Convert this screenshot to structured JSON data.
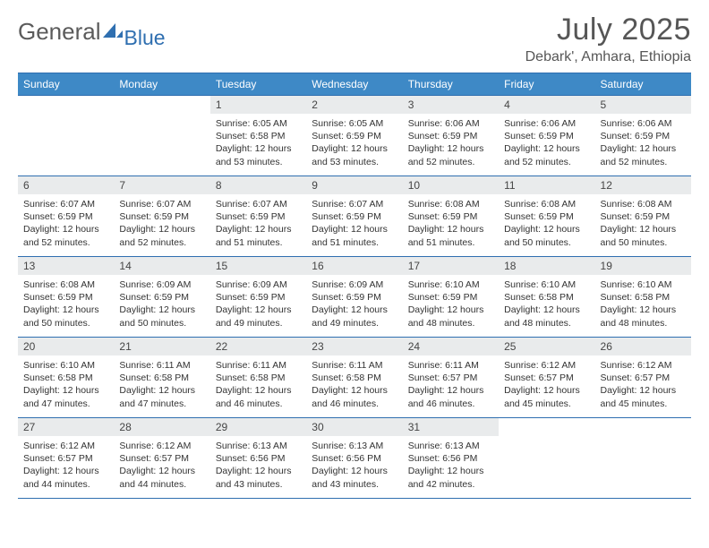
{
  "logo": {
    "text1": "General",
    "text2": "Blue"
  },
  "title": "July 2025",
  "location": "Debark', Amhara, Ethiopia",
  "theme": {
    "header_bg": "#3e89c6",
    "header_border": "#2f6fb0",
    "daynum_bg": "#e9ebec",
    "text_color": "#333333",
    "title_color": "#565656"
  },
  "weekday_labels": [
    "Sunday",
    "Monday",
    "Tuesday",
    "Wednesday",
    "Thursday",
    "Friday",
    "Saturday"
  ],
  "weeks": [
    [
      {
        "n": "",
        "sr": "",
        "ss": "",
        "dl": ""
      },
      {
        "n": "",
        "sr": "",
        "ss": "",
        "dl": ""
      },
      {
        "n": "1",
        "sr": "6:05 AM",
        "ss": "6:58 PM",
        "dl": "12 hours and 53 minutes."
      },
      {
        "n": "2",
        "sr": "6:05 AM",
        "ss": "6:59 PM",
        "dl": "12 hours and 53 minutes."
      },
      {
        "n": "3",
        "sr": "6:06 AM",
        "ss": "6:59 PM",
        "dl": "12 hours and 52 minutes."
      },
      {
        "n": "4",
        "sr": "6:06 AM",
        "ss": "6:59 PM",
        "dl": "12 hours and 52 minutes."
      },
      {
        "n": "5",
        "sr": "6:06 AM",
        "ss": "6:59 PM",
        "dl": "12 hours and 52 minutes."
      }
    ],
    [
      {
        "n": "6",
        "sr": "6:07 AM",
        "ss": "6:59 PM",
        "dl": "12 hours and 52 minutes."
      },
      {
        "n": "7",
        "sr": "6:07 AM",
        "ss": "6:59 PM",
        "dl": "12 hours and 52 minutes."
      },
      {
        "n": "8",
        "sr": "6:07 AM",
        "ss": "6:59 PM",
        "dl": "12 hours and 51 minutes."
      },
      {
        "n": "9",
        "sr": "6:07 AM",
        "ss": "6:59 PM",
        "dl": "12 hours and 51 minutes."
      },
      {
        "n": "10",
        "sr": "6:08 AM",
        "ss": "6:59 PM",
        "dl": "12 hours and 51 minutes."
      },
      {
        "n": "11",
        "sr": "6:08 AM",
        "ss": "6:59 PM",
        "dl": "12 hours and 50 minutes."
      },
      {
        "n": "12",
        "sr": "6:08 AM",
        "ss": "6:59 PM",
        "dl": "12 hours and 50 minutes."
      }
    ],
    [
      {
        "n": "13",
        "sr": "6:08 AM",
        "ss": "6:59 PM",
        "dl": "12 hours and 50 minutes."
      },
      {
        "n": "14",
        "sr": "6:09 AM",
        "ss": "6:59 PM",
        "dl": "12 hours and 50 minutes."
      },
      {
        "n": "15",
        "sr": "6:09 AM",
        "ss": "6:59 PM",
        "dl": "12 hours and 49 minutes."
      },
      {
        "n": "16",
        "sr": "6:09 AM",
        "ss": "6:59 PM",
        "dl": "12 hours and 49 minutes."
      },
      {
        "n": "17",
        "sr": "6:10 AM",
        "ss": "6:59 PM",
        "dl": "12 hours and 48 minutes."
      },
      {
        "n": "18",
        "sr": "6:10 AM",
        "ss": "6:58 PM",
        "dl": "12 hours and 48 minutes."
      },
      {
        "n": "19",
        "sr": "6:10 AM",
        "ss": "6:58 PM",
        "dl": "12 hours and 48 minutes."
      }
    ],
    [
      {
        "n": "20",
        "sr": "6:10 AM",
        "ss": "6:58 PM",
        "dl": "12 hours and 47 minutes."
      },
      {
        "n": "21",
        "sr": "6:11 AM",
        "ss": "6:58 PM",
        "dl": "12 hours and 47 minutes."
      },
      {
        "n": "22",
        "sr": "6:11 AM",
        "ss": "6:58 PM",
        "dl": "12 hours and 46 minutes."
      },
      {
        "n": "23",
        "sr": "6:11 AM",
        "ss": "6:58 PM",
        "dl": "12 hours and 46 minutes."
      },
      {
        "n": "24",
        "sr": "6:11 AM",
        "ss": "6:57 PM",
        "dl": "12 hours and 46 minutes."
      },
      {
        "n": "25",
        "sr": "6:12 AM",
        "ss": "6:57 PM",
        "dl": "12 hours and 45 minutes."
      },
      {
        "n": "26",
        "sr": "6:12 AM",
        "ss": "6:57 PM",
        "dl": "12 hours and 45 minutes."
      }
    ],
    [
      {
        "n": "27",
        "sr": "6:12 AM",
        "ss": "6:57 PM",
        "dl": "12 hours and 44 minutes."
      },
      {
        "n": "28",
        "sr": "6:12 AM",
        "ss": "6:57 PM",
        "dl": "12 hours and 44 minutes."
      },
      {
        "n": "29",
        "sr": "6:13 AM",
        "ss": "6:56 PM",
        "dl": "12 hours and 43 minutes."
      },
      {
        "n": "30",
        "sr": "6:13 AM",
        "ss": "6:56 PM",
        "dl": "12 hours and 43 minutes."
      },
      {
        "n": "31",
        "sr": "6:13 AM",
        "ss": "6:56 PM",
        "dl": "12 hours and 42 minutes."
      },
      {
        "n": "",
        "sr": "",
        "ss": "",
        "dl": ""
      },
      {
        "n": "",
        "sr": "",
        "ss": "",
        "dl": ""
      }
    ]
  ],
  "labels": {
    "sunrise": "Sunrise:",
    "sunset": "Sunset:",
    "daylight": "Daylight:"
  }
}
